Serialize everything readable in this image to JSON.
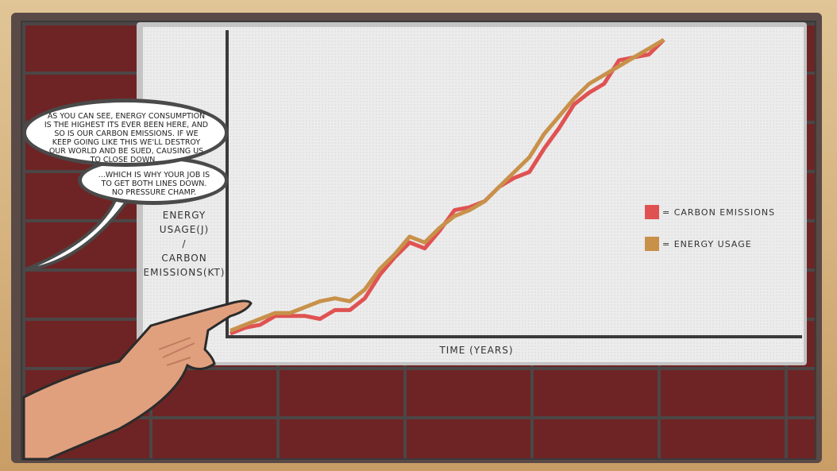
{
  "speech": {
    "bubble1": "As you can see, energy consumption is the highest its ever been here, and so is our carbon emissions. If we keep going like this we'll destroy our world and be sued, causing us to close down...",
    "bubble2": "...which is why your job is to get both lines down. No pressure champ."
  },
  "chart_data": {
    "type": "line",
    "xlabel": "Time (years)",
    "ylabel_lines": [
      "Energy",
      "Usage(J)",
      "/",
      "Carbon",
      "Emissions(kt)"
    ],
    "x": [
      0,
      1,
      2,
      3,
      4,
      5,
      6,
      7,
      8,
      9,
      10,
      11,
      12,
      13,
      14,
      15,
      16,
      17,
      18,
      19,
      20,
      21,
      22,
      23,
      24,
      25,
      26,
      27,
      28,
      29
    ],
    "series": [
      {
        "name": "Carbon Emissions",
        "color": "#e05252",
        "values": [
          0,
          2,
          3,
          6,
          6,
          6,
          5,
          8,
          8,
          12,
          20,
          26,
          31,
          29,
          35,
          42,
          43,
          45,
          50,
          53,
          55,
          63,
          70,
          78,
          82,
          85,
          93,
          94,
          95,
          100
        ]
      },
      {
        "name": "Energy Usage",
        "color": "#c8914a",
        "values": [
          1,
          3,
          5,
          7,
          7,
          9,
          11,
          12,
          11,
          15,
          22,
          27,
          33,
          31,
          36,
          40,
          42,
          45,
          50,
          55,
          60,
          68,
          74,
          80,
          85,
          88,
          91,
          94,
          97,
          100
        ]
      }
    ],
    "ylim": [
      0,
      100
    ],
    "legend": [
      {
        "label": "= Carbon Emissions",
        "color": "#e05252"
      },
      {
        "label": "= Energy Usage",
        "color": "#c8914a"
      }
    ]
  }
}
